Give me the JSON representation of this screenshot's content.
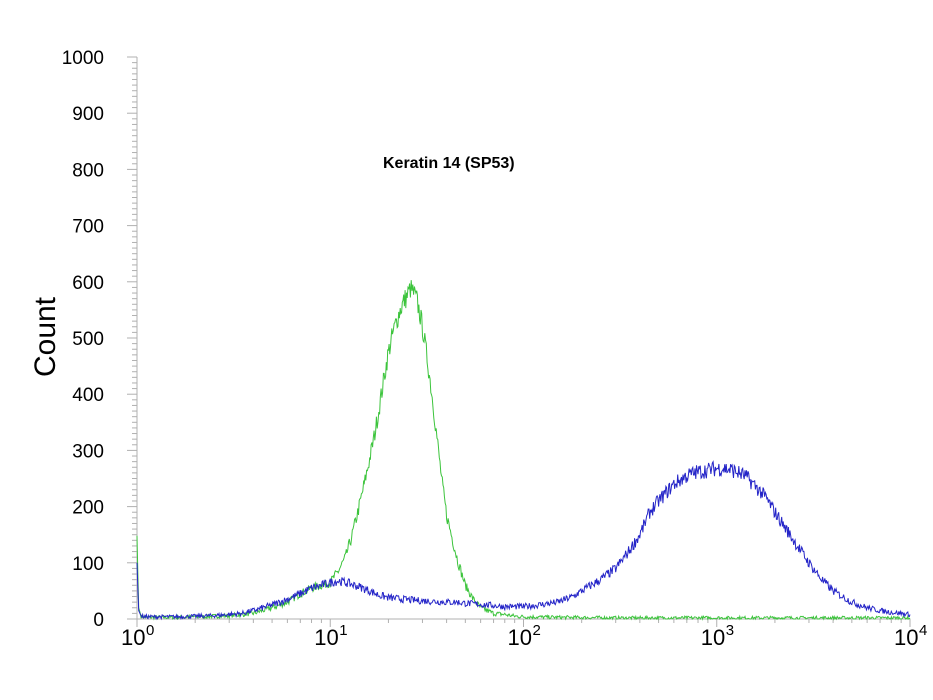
{
  "chart_data": {
    "type": "line",
    "title": "Keratin 14 (SP53)",
    "xlabel": "",
    "ylabel": "Count",
    "xscale": "log",
    "xlim": [
      1,
      10000
    ],
    "ylim": [
      0,
      1000
    ],
    "yticks": [
      0,
      100,
      200,
      300,
      400,
      500,
      600,
      700,
      800,
      900,
      1000
    ],
    "xticks": [
      {
        "value": 1,
        "base": "10",
        "exp": "0"
      },
      {
        "value": 10,
        "base": "10",
        "exp": "1"
      },
      {
        "value": 100,
        "base": "10",
        "exp": "2"
      },
      {
        "value": 1000,
        "base": "10",
        "exp": "3"
      },
      {
        "value": 10000,
        "base": "10",
        "exp": "4"
      }
    ],
    "grid": false,
    "series": [
      {
        "color": "#3cc43c",
        "x": [
          1.0,
          1.02,
          1.05,
          1.1,
          1.3,
          1.6,
          2.0,
          2.5,
          3.0,
          3.5,
          4.0,
          5.0,
          6.0,
          7.0,
          8.0,
          9.0,
          10.0,
          11.0,
          12.0,
          13.0,
          14.0,
          15.0,
          16.0,
          17.0,
          18.0,
          19.0,
          20.0,
          21.0,
          22.0,
          23.0,
          24.0,
          25.0,
          26.0,
          27.0,
          28.0,
          29.0,
          30.0,
          32.0,
          34.0,
          36.0,
          38.0,
          40.0,
          43.0,
          46.0,
          50.0,
          55.0,
          60.0,
          65.0,
          70.0,
          80.0,
          90.0,
          100.0,
          150.0,
          300.0,
          1000.0,
          3000.0,
          10000.0
        ],
        "y": [
          148,
          20,
          5,
          3,
          3,
          3,
          4,
          5,
          6,
          8,
          10,
          20,
          30,
          45,
          55,
          60,
          65,
          85,
          110,
          150,
          195,
          240,
          285,
          330,
          380,
          430,
          475,
          505,
          530,
          550,
          565,
          575,
          588,
          580,
          568,
          545,
          520,
          455,
          385,
          310,
          240,
          185,
          140,
          100,
          60,
          35,
          20,
          15,
          10,
          8,
          5,
          4,
          3,
          2,
          2,
          2,
          2
        ]
      },
      {
        "color": "#2525c8",
        "x": [
          1.0,
          1.02,
          1.05,
          1.1,
          1.3,
          1.6,
          2.0,
          2.5,
          3.0,
          3.5,
          4.0,
          5.0,
          6.0,
          7.0,
          8.0,
          9.0,
          10.0,
          11.0,
          12.0,
          14.0,
          16.0,
          18.0,
          20.0,
          24.0,
          28.0,
          32.0,
          36.0,
          40.0,
          45.0,
          50.0,
          60.0,
          70.0,
          80.0,
          90.0,
          100.0,
          120.0,
          150.0,
          180.0,
          200.0,
          250.0,
          300.0,
          350.0,
          400.0,
          450.0,
          500.0,
          600.0,
          700.0,
          800.0,
          900.0,
          1000.0,
          1100.0,
          1200.0,
          1300.0,
          1400.0,
          1600.0,
          1800.0,
          2000.0,
          2500.0,
          3000.0,
          3500.0,
          4000.0,
          5000.0,
          6000.0,
          7000.0,
          8000.0,
          9000.0,
          10000.0
        ],
        "y": [
          100,
          15,
          5,
          4,
          4,
          4,
          5,
          6,
          8,
          10,
          15,
          25,
          35,
          45,
          55,
          60,
          65,
          68,
          65,
          58,
          50,
          42,
          38,
          35,
          33,
          32,
          31,
          30,
          30,
          28,
          26,
          24,
          22,
          22,
          22,
          25,
          30,
          40,
          50,
          70,
          90,
          120,
          150,
          190,
          210,
          240,
          255,
          262,
          265,
          268,
          268,
          265,
          260,
          255,
          235,
          215,
          190,
          140,
          100,
          70,
          50,
          30,
          20,
          15,
          12,
          10,
          8
        ]
      }
    ]
  }
}
